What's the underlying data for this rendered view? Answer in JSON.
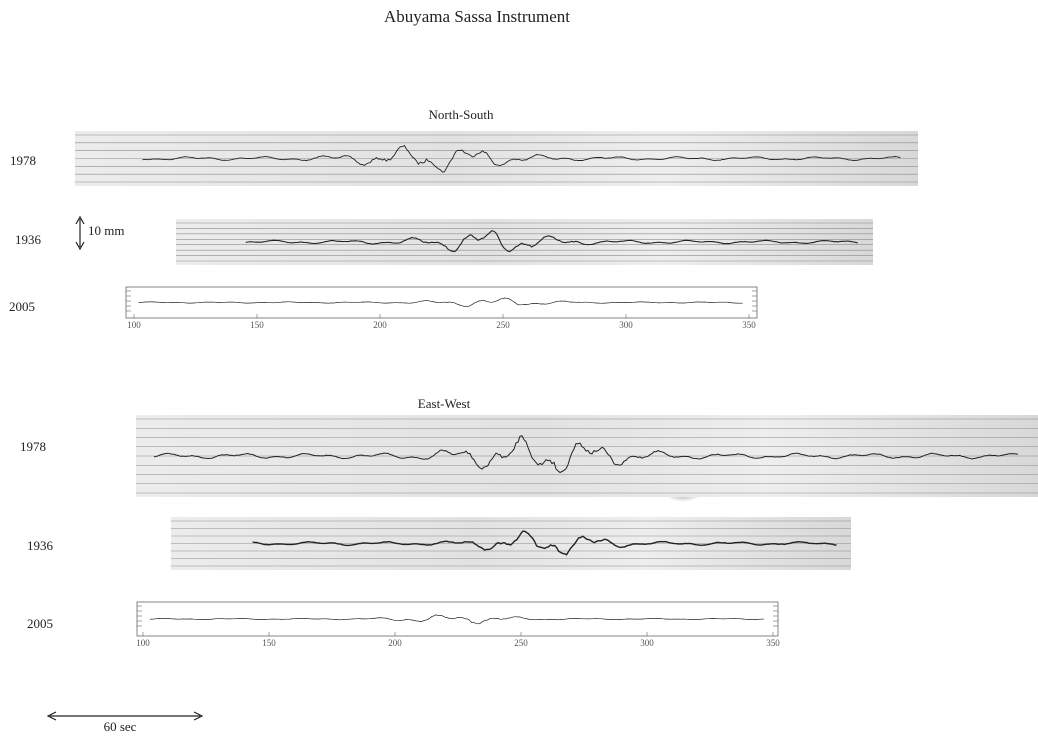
{
  "title": "Abuyama Sassa Instrument",
  "panels": [
    {
      "heading": "North-South",
      "records": [
        {
          "year": "1978"
        },
        {
          "year": "1936"
        },
        {
          "year": "2005",
          "axis_ticks": [
            100,
            150,
            200,
            250,
            300,
            350
          ]
        }
      ]
    },
    {
      "heading": "East-West",
      "records": [
        {
          "year": "1978"
        },
        {
          "year": "1936"
        },
        {
          "year": "2005",
          "axis_ticks": [
            100,
            150,
            200,
            250,
            300,
            350
          ]
        }
      ]
    }
  ],
  "vertical_scale": "10 mm",
  "horizontal_scale": "60 sec"
}
